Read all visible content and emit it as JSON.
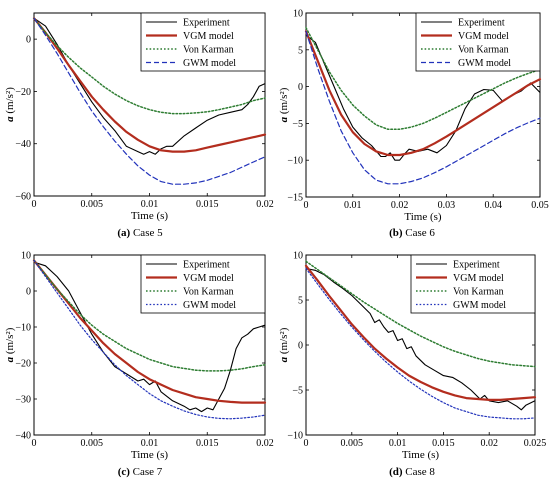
{
  "chart_data": [
    {
      "type": "line",
      "caption_bold": "(a)",
      "caption_text": " Case 5",
      "xlabel": "Time (s)",
      "ylabel_sym": "a",
      "ylabel_unit": " (m/s²)",
      "xlim": [
        0,
        0.02
      ],
      "ylim": [
        -60,
        10
      ],
      "xticks": [
        0,
        0.005,
        0.01,
        0.015,
        0.02
      ],
      "xtick_labels": [
        "0",
        "0.005",
        "0.01",
        "0.015",
        "0.02"
      ],
      "yticks": [
        -60,
        -40,
        -20,
        0
      ],
      "ytick_labels": [
        "−60",
        "−40",
        "−20",
        "0"
      ],
      "legend_position": "top-right",
      "series": [
        {
          "name": "Experiment",
          "color": "#000000",
          "dash": "solid",
          "x": [
            0,
            0.001,
            0.002,
            0.003,
            0.004,
            0.005,
            0.006,
            0.007,
            0.008,
            0.009,
            0.0095,
            0.01,
            0.0105,
            0.011,
            0.0115,
            0.012,
            0.013,
            0.014,
            0.015,
            0.016,
            0.017,
            0.018,
            0.0185,
            0.019,
            0.0195,
            0.02
          ],
          "y": [
            8,
            5,
            -2,
            -10,
            -17,
            -24,
            -30,
            -35,
            -41,
            -43,
            -44,
            -43,
            -44,
            -42,
            -41,
            -41,
            -37,
            -34,
            -31,
            -29,
            -28,
            -27,
            -25,
            -22,
            -18,
            -17
          ]
        },
        {
          "name": "VGM model",
          "color": "#b32d1e",
          "dash": "solid",
          "x": [
            0,
            0.001,
            0.002,
            0.003,
            0.004,
            0.005,
            0.006,
            0.007,
            0.008,
            0.009,
            0.01,
            0.011,
            0.012,
            0.013,
            0.014,
            0.015,
            0.016,
            0.017,
            0.018,
            0.019,
            0.02
          ],
          "y": [
            8,
            2.5,
            -3.5,
            -10,
            -16,
            -22,
            -27,
            -31.5,
            -35.5,
            -38.5,
            -41,
            -42.5,
            -43,
            -43,
            -42.5,
            -41.5,
            -40.5,
            -39.5,
            -38.5,
            -37.5,
            -36.5
          ]
        },
        {
          "name": "Von Karman",
          "color": "#2e7d32",
          "dash": "dotted",
          "x": [
            0,
            0.001,
            0.002,
            0.003,
            0.004,
            0.005,
            0.006,
            0.007,
            0.008,
            0.009,
            0.01,
            0.011,
            0.012,
            0.013,
            0.014,
            0.015,
            0.016,
            0.017,
            0.018,
            0.019,
            0.02
          ],
          "y": [
            8,
            2.5,
            -2.5,
            -7,
            -11,
            -14.5,
            -18,
            -21,
            -23.5,
            -25.5,
            -27,
            -28,
            -28.5,
            -28.5,
            -28.2,
            -27.8,
            -27,
            -26,
            -25,
            -23.5,
            -22.5
          ]
        },
        {
          "name": "GWM model",
          "color": "#2233bb",
          "dash": "dashed",
          "x": [
            0,
            0.001,
            0.002,
            0.003,
            0.004,
            0.005,
            0.006,
            0.007,
            0.008,
            0.009,
            0.01,
            0.011,
            0.012,
            0.013,
            0.014,
            0.015,
            0.016,
            0.017,
            0.018,
            0.019,
            0.02
          ],
          "y": [
            8,
            1.5,
            -5.5,
            -13,
            -20.5,
            -27.5,
            -33.5,
            -39,
            -44,
            -48.5,
            -52,
            -54.5,
            -55.5,
            -55.5,
            -55,
            -54,
            -52.5,
            -51,
            -49,
            -47,
            -45
          ]
        }
      ]
    },
    {
      "type": "line",
      "caption_bold": "(b)",
      "caption_text": " Case 6",
      "xlabel": "Time (s)",
      "ylabel_sym": "a",
      "ylabel_unit": " (m/s²)",
      "xlim": [
        0,
        0.05
      ],
      "ylim": [
        -15,
        10
      ],
      "xticks": [
        0,
        0.01,
        0.02,
        0.03,
        0.04,
        0.05
      ],
      "xtick_labels": [
        "0",
        "0.01",
        "0.02",
        "0.03",
        "0.04",
        "0.05"
      ],
      "yticks": [
        -15,
        -10,
        -5,
        0,
        5,
        10
      ],
      "ytick_labels": [
        "−15",
        "−10",
        "−5",
        "0",
        "5",
        "10"
      ],
      "legend_position": "top-right",
      "series": [
        {
          "name": "Experiment",
          "color": "#000000",
          "dash": "solid",
          "x": [
            0,
            0.002,
            0.004,
            0.006,
            0.008,
            0.01,
            0.012,
            0.014,
            0.016,
            0.017,
            0.018,
            0.019,
            0.02,
            0.021,
            0.022,
            0.024,
            0.026,
            0.028,
            0.03,
            0.032,
            0.034,
            0.036,
            0.038,
            0.04,
            0.042,
            0.044,
            0.046,
            0.048,
            0.05
          ],
          "y": [
            7,
            6,
            3,
            0,
            -3,
            -5.5,
            -7,
            -8,
            -9.5,
            -9.5,
            -9,
            -10,
            -10,
            -9.2,
            -8.5,
            -8.8,
            -8.5,
            -9,
            -8,
            -6,
            -3,
            -1,
            -0.4,
            -0.5,
            -2,
            -1.2,
            -0.6,
            0.5,
            -0.8
          ]
        },
        {
          "name": "VGM model",
          "color": "#b32d1e",
          "dash": "solid",
          "x": [
            0,
            0.0025,
            0.005,
            0.0075,
            0.01,
            0.0125,
            0.015,
            0.0175,
            0.02,
            0.0225,
            0.025,
            0.0275,
            0.03,
            0.0325,
            0.035,
            0.0375,
            0.04,
            0.0425,
            0.045,
            0.0475,
            0.05
          ],
          "y": [
            7.5,
            3.5,
            -0.5,
            -3.8,
            -6.2,
            -7.8,
            -8.8,
            -9.3,
            -9.3,
            -9,
            -8.5,
            -7.7,
            -6.8,
            -5.8,
            -4.8,
            -3.8,
            -2.8,
            -1.8,
            -0.8,
            0.2,
            1
          ]
        },
        {
          "name": "Von Karman",
          "color": "#2e7d32",
          "dash": "dotted",
          "x": [
            0,
            0.0025,
            0.005,
            0.0075,
            0.01,
            0.0125,
            0.015,
            0.0175,
            0.02,
            0.0225,
            0.025,
            0.0275,
            0.03,
            0.0325,
            0.035,
            0.0375,
            0.04,
            0.0425,
            0.045,
            0.0475,
            0.05
          ],
          "y": [
            8,
            5,
            2,
            -0.5,
            -2.5,
            -4,
            -5.2,
            -5.8,
            -5.8,
            -5.5,
            -5,
            -4.3,
            -3.5,
            -2.7,
            -1.9,
            -1.1,
            -0.3,
            0.5,
            1.2,
            1.8,
            2.3
          ]
        },
        {
          "name": "GWM model",
          "color": "#2233bb",
          "dash": "dashed",
          "x": [
            0,
            0.0025,
            0.005,
            0.0075,
            0.01,
            0.0125,
            0.015,
            0.0175,
            0.02,
            0.0225,
            0.025,
            0.0275,
            0.03,
            0.0325,
            0.035,
            0.0375,
            0.04,
            0.0425,
            0.045,
            0.0475,
            0.05
          ],
          "y": [
            7.5,
            2.5,
            -2,
            -6,
            -9,
            -11.3,
            -12.7,
            -13.2,
            -13.2,
            -12.9,
            -12.4,
            -11.7,
            -10.9,
            -10,
            -9.1,
            -8.2,
            -7.3,
            -6.4,
            -5.6,
            -4.9,
            -4.3
          ]
        }
      ]
    },
    {
      "type": "line",
      "caption_bold": "(c)",
      "caption_text": " Case 7",
      "xlabel": "Time (s)",
      "ylabel_sym": "a",
      "ylabel_unit": " (m/s²)",
      "xlim": [
        0,
        0.02
      ],
      "ylim": [
        -40,
        10
      ],
      "xticks": [
        0,
        0.005,
        0.01,
        0.015,
        0.02
      ],
      "xtick_labels": [
        "0",
        "0.005",
        "0.01",
        "0.015",
        "0.02"
      ],
      "yticks": [
        -40,
        -30,
        -20,
        -10,
        0,
        10
      ],
      "ytick_labels": [
        "−40",
        "−30",
        "−20",
        "−10",
        "0",
        "10"
      ],
      "legend_position": "top-right",
      "series": [
        {
          "name": "Experiment",
          "color": "#000000",
          "dash": "solid",
          "x": [
            0,
            0.001,
            0.002,
            0.003,
            0.004,
            0.005,
            0.006,
            0.007,
            0.008,
            0.009,
            0.0095,
            0.01,
            0.0105,
            0.011,
            0.012,
            0.013,
            0.0135,
            0.014,
            0.0145,
            0.015,
            0.0155,
            0.016,
            0.0165,
            0.017,
            0.0175,
            0.018,
            0.0185,
            0.019,
            0.0195,
            0.02
          ],
          "y": [
            8,
            7,
            4,
            0,
            -6,
            -12,
            -17,
            -21,
            -23,
            -25,
            -24.5,
            -26,
            -25,
            -28,
            -30.5,
            -32,
            -33,
            -32.5,
            -33.5,
            -32.5,
            -33,
            -30,
            -27,
            -22,
            -16,
            -13,
            -12,
            -10.5,
            -10,
            -9.5
          ]
        },
        {
          "name": "VGM model",
          "color": "#b32d1e",
          "dash": "solid",
          "x": [
            0,
            0.001,
            0.002,
            0.003,
            0.004,
            0.005,
            0.006,
            0.007,
            0.008,
            0.009,
            0.01,
            0.011,
            0.012,
            0.013,
            0.014,
            0.015,
            0.016,
            0.017,
            0.018,
            0.019,
            0.02
          ],
          "y": [
            8.5,
            4.5,
            0.5,
            -3.5,
            -7.5,
            -11,
            -14.5,
            -17.5,
            -20,
            -22.5,
            -24.5,
            -26,
            -27.5,
            -28.5,
            -29.5,
            -30,
            -30.5,
            -30.8,
            -31,
            -31,
            -31
          ]
        },
        {
          "name": "Von Karman",
          "color": "#2e7d32",
          "dash": "dotted",
          "x": [
            0,
            0.001,
            0.002,
            0.003,
            0.004,
            0.005,
            0.006,
            0.007,
            0.008,
            0.009,
            0.01,
            0.011,
            0.012,
            0.013,
            0.014,
            0.015,
            0.016,
            0.017,
            0.018,
            0.019,
            0.02
          ],
          "y": [
            8.5,
            4.5,
            0.5,
            -3,
            -6.5,
            -9.5,
            -12,
            -14,
            -16,
            -17.5,
            -19,
            -20,
            -21,
            -21.5,
            -22,
            -22.2,
            -22.2,
            -22,
            -21.6,
            -21,
            -20.5
          ]
        },
        {
          "name": "GWM model",
          "color": "#2233bb",
          "dash": "dotted",
          "x": [
            0,
            0.001,
            0.002,
            0.003,
            0.004,
            0.005,
            0.006,
            0.007,
            0.008,
            0.009,
            0.01,
            0.011,
            0.012,
            0.013,
            0.014,
            0.015,
            0.016,
            0.017,
            0.018,
            0.019,
            0.02
          ],
          "y": [
            8.5,
            4,
            -0.5,
            -5,
            -9.5,
            -13.5,
            -17,
            -20.5,
            -23.5,
            -26,
            -28.5,
            -30.5,
            -32,
            -33.3,
            -34.3,
            -35,
            -35.4,
            -35.5,
            -35.3,
            -35,
            -34.5
          ]
        }
      ]
    },
    {
      "type": "line",
      "caption_bold": "(d)",
      "caption_text": " Case 8",
      "xlabel": "Time (s)",
      "ylabel_sym": "a",
      "ylabel_unit": " (m/s²)",
      "xlim": [
        0,
        0.025
      ],
      "ylim": [
        -10,
        10
      ],
      "xticks": [
        0,
        0.005,
        0.01,
        0.015,
        0.02,
        0.025
      ],
      "xtick_labels": [
        "0",
        "0.005",
        "0.01",
        "0.015",
        "0.02",
        "0.025"
      ],
      "yticks": [
        -10,
        -5,
        0,
        5,
        10
      ],
      "ytick_labels": [
        "−10",
        "−5",
        "0",
        "5",
        "10"
      ],
      "legend_position": "top-right",
      "series": [
        {
          "name": "Experiment",
          "color": "#000000",
          "dash": "solid",
          "x": [
            0,
            0.001,
            0.002,
            0.003,
            0.004,
            0.005,
            0.006,
            0.007,
            0.0075,
            0.008,
            0.0085,
            0.009,
            0.0095,
            0.01,
            0.0105,
            0.011,
            0.0115,
            0.012,
            0.013,
            0.014,
            0.015,
            0.016,
            0.017,
            0.018,
            0.019,
            0.0195,
            0.02,
            0.021,
            0.022,
            0.023,
            0.0235,
            0.024,
            0.025
          ],
          "y": [
            8.5,
            8.3,
            7.8,
            7,
            6.3,
            5.5,
            4.5,
            3.5,
            2.5,
            2.8,
            2,
            1.4,
            1.6,
            0.5,
            0.7,
            -0.4,
            -0.2,
            -1.2,
            -2.2,
            -2.8,
            -3.4,
            -3.6,
            -4.2,
            -5,
            -6,
            -5.6,
            -6.2,
            -6.4,
            -6.2,
            -6.8,
            -7.2,
            -6.7,
            -6.2
          ]
        },
        {
          "name": "VGM model",
          "color": "#b32d1e",
          "dash": "solid",
          "x": [
            0,
            0.00125,
            0.0025,
            0.00375,
            0.005,
            0.00625,
            0.0075,
            0.00875,
            0.01,
            0.01125,
            0.0125,
            0.01375,
            0.015,
            0.01625,
            0.0175,
            0.01875,
            0.02,
            0.02125,
            0.0225,
            0.02375,
            0.025
          ],
          "y": [
            8.8,
            7.2,
            5.5,
            3.9,
            2.3,
            0.9,
            -0.4,
            -1.5,
            -2.5,
            -3.4,
            -4.1,
            -4.7,
            -5.2,
            -5.6,
            -5.9,
            -6,
            -6.1,
            -6.1,
            -6,
            -5.9,
            -5.8
          ]
        },
        {
          "name": "Von Karman",
          "color": "#2e7d32",
          "dash": "dotted",
          "x": [
            0,
            0.00125,
            0.0025,
            0.00375,
            0.005,
            0.00625,
            0.0075,
            0.00875,
            0.01,
            0.01125,
            0.0125,
            0.01375,
            0.015,
            0.01625,
            0.0175,
            0.01875,
            0.02,
            0.02125,
            0.0225,
            0.02375,
            0.025
          ],
          "y": [
            9.3,
            8.4,
            7.5,
            6.6,
            5.7,
            4.8,
            4,
            3.2,
            2.4,
            1.7,
            1,
            0.4,
            -0.2,
            -0.7,
            -1.1,
            -1.5,
            -1.8,
            -2,
            -2.2,
            -2.3,
            -2.4
          ]
        },
        {
          "name": "GWM model",
          "color": "#2233bb",
          "dash": "dotted",
          "x": [
            0,
            0.00125,
            0.0025,
            0.00375,
            0.005,
            0.00625,
            0.0075,
            0.00875,
            0.01,
            0.01125,
            0.0125,
            0.01375,
            0.015,
            0.01625,
            0.0175,
            0.01875,
            0.02,
            0.02125,
            0.0225,
            0.02375,
            0.025
          ],
          "y": [
            8.5,
            6.8,
            5.1,
            3.5,
            2,
            0.6,
            -0.7,
            -1.9,
            -3,
            -4,
            -4.9,
            -5.7,
            -6.4,
            -7,
            -7.4,
            -7.8,
            -8,
            -8.1,
            -8.2,
            -8.2,
            -8.1
          ]
        }
      ]
    }
  ]
}
